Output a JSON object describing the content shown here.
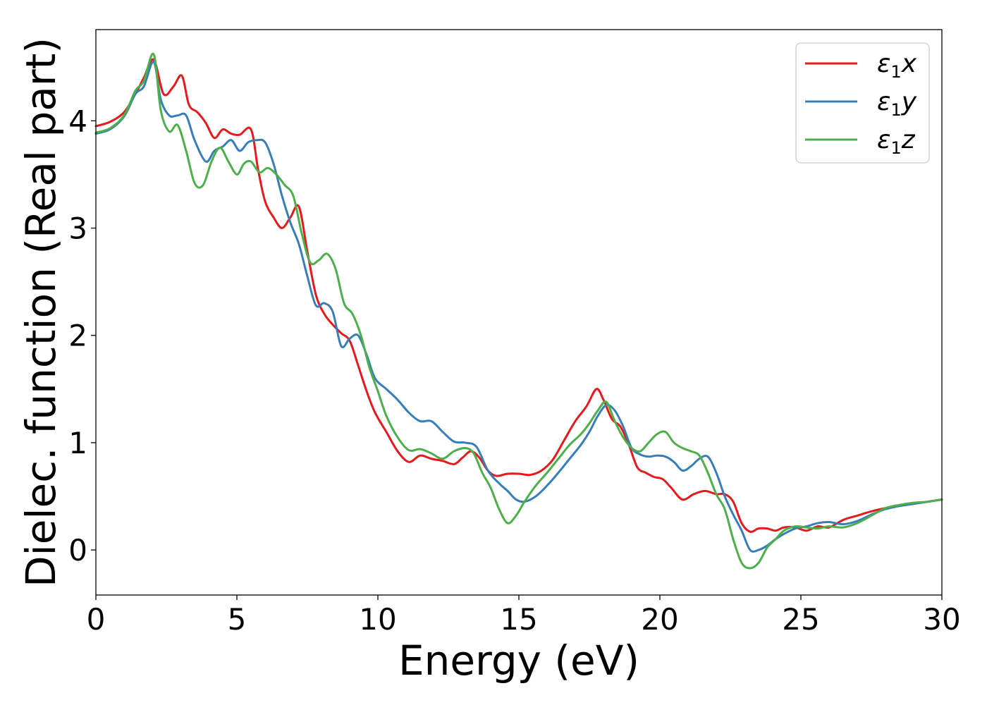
{
  "chart_data": {
    "type": "line",
    "title": "",
    "xlabel": "Energy (eV)",
    "ylabel": "Dielec. function (Real part)",
    "xlim": [
      0,
      30
    ],
    "ylim": [
      -0.42,
      4.85
    ],
    "xticks": [
      0,
      5,
      10,
      15,
      20,
      25,
      30
    ],
    "yticks": [
      0,
      1,
      2,
      3,
      4
    ],
    "grid": false,
    "legend_position": "top-right",
    "series": [
      {
        "name": "ε1x",
        "legend_base": "ε",
        "legend_sub": "1",
        "legend_suffix": "x",
        "color": "#e41a1c",
        "x": [
          0,
          0.5,
          1.0,
          1.4,
          1.7,
          2.05,
          2.4,
          2.75,
          3.05,
          3.3,
          3.6,
          3.9,
          4.2,
          4.5,
          4.8,
          5.1,
          5.5,
          5.75,
          6.0,
          6.3,
          6.6,
          6.9,
          7.2,
          7.5,
          7.8,
          8.1,
          8.4,
          8.7,
          9.0,
          9.3,
          9.6,
          9.9,
          10.3,
          10.7,
          11.1,
          11.5,
          11.9,
          12.3,
          12.7,
          13.0,
          13.3,
          13.6,
          13.9,
          14.2,
          14.6,
          15.0,
          15.4,
          15.8,
          16.2,
          16.6,
          17.0,
          17.4,
          17.75,
          18.0,
          18.3,
          18.6,
          18.9,
          19.2,
          19.5,
          19.8,
          20.1,
          20.4,
          20.8,
          21.2,
          21.6,
          22.0,
          22.3,
          22.6,
          22.9,
          23.2,
          23.5,
          23.8,
          24.1,
          24.4,
          24.8,
          25.2,
          25.6,
          26.0,
          26.5,
          27.0,
          27.5,
          28.0,
          28.5,
          29.0,
          29.5,
          30.0
        ],
        "y": [
          3.95,
          3.99,
          4.08,
          4.25,
          4.4,
          4.57,
          4.25,
          4.32,
          4.42,
          4.15,
          4.08,
          3.98,
          3.84,
          3.92,
          3.88,
          3.87,
          3.92,
          3.55,
          3.25,
          3.1,
          3.0,
          3.1,
          3.2,
          2.78,
          2.38,
          2.2,
          2.1,
          2.02,
          1.95,
          1.72,
          1.48,
          1.28,
          1.1,
          0.92,
          0.82,
          0.88,
          0.85,
          0.83,
          0.8,
          0.86,
          0.92,
          0.86,
          0.74,
          0.69,
          0.71,
          0.71,
          0.7,
          0.74,
          0.84,
          1.02,
          1.2,
          1.34,
          1.5,
          1.4,
          1.22,
          1.15,
          0.98,
          0.77,
          0.72,
          0.68,
          0.66,
          0.58,
          0.47,
          0.52,
          0.55,
          0.52,
          0.52,
          0.45,
          0.25,
          0.17,
          0.2,
          0.2,
          0.18,
          0.21,
          0.21,
          0.18,
          0.22,
          0.21,
          0.28,
          0.32,
          0.36,
          0.39,
          0.41,
          0.43,
          0.45,
          0.47
        ]
      },
      {
        "name": "ε1y",
        "legend_base": "ε",
        "legend_sub": "1",
        "legend_suffix": "y",
        "color": "#377eb8",
        "x": [
          0,
          0.5,
          1.0,
          1.4,
          1.7,
          2.05,
          2.3,
          2.6,
          2.9,
          3.2,
          3.5,
          3.9,
          4.2,
          4.5,
          4.8,
          5.1,
          5.4,
          5.7,
          6.0,
          6.3,
          6.6,
          6.9,
          7.2,
          7.5,
          7.8,
          8.1,
          8.4,
          8.7,
          9.0,
          9.3,
          9.6,
          9.9,
          10.3,
          10.7,
          11.1,
          11.5,
          11.9,
          12.3,
          12.7,
          13.1,
          13.5,
          13.9,
          14.3,
          14.6,
          14.9,
          15.2,
          15.6,
          16.0,
          16.4,
          16.8,
          17.2,
          17.5,
          17.8,
          18.1,
          18.4,
          18.7,
          19.0,
          19.3,
          19.6,
          19.9,
          20.2,
          20.5,
          20.8,
          21.1,
          21.4,
          21.7,
          22.0,
          22.3,
          22.6,
          22.9,
          23.2,
          23.5,
          23.8,
          24.1,
          24.4,
          24.8,
          25.2,
          25.6,
          26.0,
          26.5,
          27.0,
          27.5,
          28.0,
          28.5,
          29.0,
          29.5,
          30.0
        ],
        "y": [
          3.88,
          3.92,
          4.04,
          4.25,
          4.32,
          4.55,
          4.2,
          4.05,
          4.05,
          4.05,
          3.82,
          3.62,
          3.72,
          3.76,
          3.82,
          3.72,
          3.8,
          3.82,
          3.8,
          3.6,
          3.3,
          3.05,
          2.85,
          2.55,
          2.28,
          2.3,
          2.22,
          1.9,
          1.97,
          2.0,
          1.82,
          1.6,
          1.5,
          1.4,
          1.28,
          1.2,
          1.2,
          1.1,
          1.01,
          1.0,
          0.96,
          0.74,
          0.62,
          0.55,
          0.47,
          0.45,
          0.5,
          0.6,
          0.72,
          0.85,
          0.98,
          1.1,
          1.25,
          1.35,
          1.3,
          1.15,
          0.95,
          0.89,
          0.87,
          0.88,
          0.87,
          0.82,
          0.74,
          0.78,
          0.85,
          0.87,
          0.72,
          0.5,
          0.33,
          0.18,
          0.0,
          0.0,
          0.04,
          0.1,
          0.15,
          0.2,
          0.22,
          0.25,
          0.26,
          0.24,
          0.27,
          0.33,
          0.38,
          0.41,
          0.43,
          0.45,
          0.47
        ]
      },
      {
        "name": "ε1z",
        "legend_base": "ε",
        "legend_sub": "1",
        "legend_suffix": "z",
        "color": "#4daf4a",
        "x": [
          0,
          0.5,
          1.0,
          1.4,
          1.7,
          2.05,
          2.3,
          2.6,
          2.9,
          3.2,
          3.5,
          3.8,
          4.1,
          4.4,
          4.7,
          5.0,
          5.25,
          5.5,
          5.8,
          6.1,
          6.4,
          6.7,
          7.0,
          7.3,
          7.6,
          7.9,
          8.2,
          8.5,
          8.8,
          9.1,
          9.4,
          9.7,
          10.0,
          10.3,
          10.7,
          11.1,
          11.5,
          11.9,
          12.3,
          12.7,
          13.1,
          13.4,
          13.7,
          14.0,
          14.3,
          14.6,
          14.9,
          15.2,
          15.6,
          16.0,
          16.4,
          16.8,
          17.2,
          17.5,
          17.8,
          18.1,
          18.4,
          18.7,
          19.0,
          19.3,
          19.6,
          19.9,
          20.2,
          20.5,
          20.8,
          21.1,
          21.4,
          21.7,
          22.0,
          22.3,
          22.6,
          22.9,
          23.2,
          23.5,
          23.8,
          24.1,
          24.4,
          24.8,
          25.2,
          25.6,
          26.0,
          26.5,
          27.0,
          27.5,
          28.0,
          28.5,
          29.0,
          29.5,
          30.0
        ],
        "y": [
          3.89,
          3.93,
          4.05,
          4.28,
          4.37,
          4.62,
          4.1,
          3.9,
          3.96,
          3.72,
          3.42,
          3.4,
          3.62,
          3.75,
          3.62,
          3.5,
          3.6,
          3.62,
          3.52,
          3.56,
          3.5,
          3.4,
          3.3,
          2.95,
          2.68,
          2.7,
          2.76,
          2.62,
          2.3,
          2.2,
          2.0,
          1.7,
          1.48,
          1.25,
          1.05,
          0.93,
          0.94,
          0.9,
          0.85,
          0.92,
          0.95,
          0.9,
          0.72,
          0.58,
          0.38,
          0.25,
          0.32,
          0.45,
          0.6,
          0.72,
          0.85,
          0.98,
          1.08,
          1.18,
          1.3,
          1.38,
          1.2,
          1.05,
          0.95,
          0.92,
          1.0,
          1.08,
          1.1,
          1.0,
          0.95,
          0.92,
          0.88,
          0.72,
          0.52,
          0.38,
          0.1,
          -0.12,
          -0.17,
          -0.12,
          0.02,
          0.1,
          0.18,
          0.22,
          0.21,
          0.2,
          0.22,
          0.21,
          0.25,
          0.32,
          0.39,
          0.42,
          0.44,
          0.45,
          0.47
        ]
      }
    ]
  }
}
